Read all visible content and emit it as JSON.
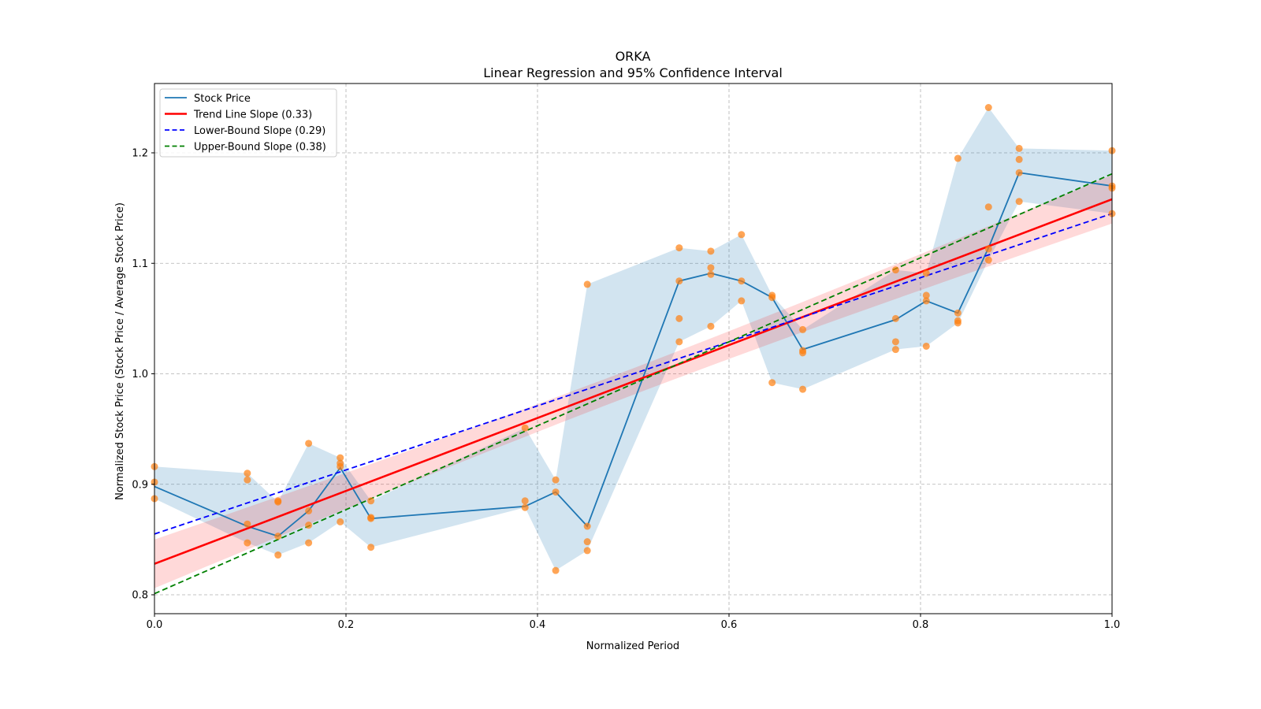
{
  "chart_data": {
    "type": "line",
    "title": "ORKA",
    "subtitle": "Linear Regression and 95% Confidence Interval",
    "xlabel": "Normalized Period",
    "ylabel": "Normalized Stock Price (Stock Price / Average Stock Price)",
    "xlim": [
      0.0,
      1.0
    ],
    "ylim": [
      0.78,
      1.26
    ],
    "grid": true,
    "legend_position": "top-left",
    "x_ticks": [
      "0.0",
      "0.2",
      "0.4",
      "0.6",
      "0.8",
      "1.0"
    ],
    "x_tick_values": [
      0.0,
      0.2,
      0.4,
      0.6,
      0.8,
      1.0
    ],
    "y_ticks": [
      "0.8",
      "0.9",
      "1.0",
      "1.1",
      "1.2"
    ],
    "y_tick_values": [
      0.8,
      0.9,
      1.0,
      1.1,
      1.2
    ],
    "legend": [
      {
        "label": "Stock Price",
        "color": "#1f77b4",
        "style": "solid"
      },
      {
        "label": "Trend Line Slope (0.33)",
        "color": "#ff0000",
        "style": "solid"
      },
      {
        "label": "Lower-Bound Slope (0.29)",
        "color": "#0000ff",
        "style": "dashed"
      },
      {
        "label": "Upper-Bound Slope (0.38)",
        "color": "#008000",
        "style": "dashed"
      }
    ],
    "stock_price_line": {
      "x": [
        0.0,
        0.097,
        0.129,
        0.161,
        0.194,
        0.226,
        0.387,
        0.419,
        0.452,
        0.548,
        0.581,
        0.613,
        0.645,
        0.677,
        0.774,
        0.806,
        0.839,
        0.871,
        0.903,
        1.0
      ],
      "y": [
        0.898,
        0.862,
        0.853,
        0.876,
        0.915,
        0.869,
        0.88,
        0.893,
        0.862,
        1.084,
        1.091,
        1.084,
        1.069,
        1.022,
        1.049,
        1.066,
        1.055,
        1.114,
        1.182,
        1.17
      ]
    },
    "range_band": {
      "x": [
        0.0,
        0.097,
        0.129,
        0.161,
        0.194,
        0.226,
        0.387,
        0.419,
        0.452,
        0.548,
        0.581,
        0.613,
        0.645,
        0.677,
        0.774,
        0.806,
        0.839,
        0.871,
        0.903,
        1.0
      ],
      "upper": [
        0.916,
        0.91,
        0.884,
        0.937,
        0.924,
        0.885,
        0.951,
        0.904,
        1.081,
        1.114,
        1.111,
        1.126,
        1.071,
        1.04,
        1.094,
        1.091,
        1.195,
        1.241,
        1.204,
        1.202
      ],
      "lower": [
        0.887,
        0.847,
        0.836,
        0.847,
        0.866,
        0.843,
        0.879,
        0.822,
        0.84,
        1.029,
        1.043,
        1.066,
        0.992,
        0.986,
        1.022,
        1.025,
        1.046,
        1.103,
        1.156,
        1.145
      ],
      "color": "#1f77b4"
    },
    "scatter_points": [
      [
        0.0,
        0.916
      ],
      [
        0.0,
        0.902
      ],
      [
        0.0,
        0.887
      ],
      [
        0.097,
        0.91
      ],
      [
        0.097,
        0.904
      ],
      [
        0.097,
        0.864
      ],
      [
        0.097,
        0.847
      ],
      [
        0.129,
        0.884
      ],
      [
        0.129,
        0.885
      ],
      [
        0.129,
        0.853
      ],
      [
        0.129,
        0.836
      ],
      [
        0.161,
        0.937
      ],
      [
        0.161,
        0.876
      ],
      [
        0.161,
        0.863
      ],
      [
        0.161,
        0.847
      ],
      [
        0.194,
        0.924
      ],
      [
        0.194,
        0.919
      ],
      [
        0.194,
        0.916
      ],
      [
        0.194,
        0.866
      ],
      [
        0.226,
        0.885
      ],
      [
        0.226,
        0.87
      ],
      [
        0.226,
        0.869
      ],
      [
        0.226,
        0.843
      ],
      [
        0.387,
        0.951
      ],
      [
        0.387,
        0.885
      ],
      [
        0.387,
        0.879
      ],
      [
        0.419,
        0.904
      ],
      [
        0.419,
        0.893
      ],
      [
        0.419,
        0.822
      ],
      [
        0.452,
        1.081
      ],
      [
        0.452,
        0.862
      ],
      [
        0.452,
        0.848
      ],
      [
        0.452,
        0.84
      ],
      [
        0.548,
        1.114
      ],
      [
        0.548,
        1.084
      ],
      [
        0.548,
        1.05
      ],
      [
        0.548,
        1.029
      ],
      [
        0.581,
        1.111
      ],
      [
        0.581,
        1.096
      ],
      [
        0.581,
        1.09
      ],
      [
        0.581,
        1.043
      ],
      [
        0.613,
        1.126
      ],
      [
        0.613,
        1.084
      ],
      [
        0.613,
        1.066
      ],
      [
        0.645,
        1.071
      ],
      [
        0.645,
        1.069
      ],
      [
        0.645,
        0.992
      ],
      [
        0.677,
        1.04
      ],
      [
        0.677,
        1.021
      ],
      [
        0.677,
        1.019
      ],
      [
        0.677,
        0.986
      ],
      [
        0.774,
        1.094
      ],
      [
        0.774,
        1.05
      ],
      [
        0.774,
        1.029
      ],
      [
        0.774,
        1.022
      ],
      [
        0.806,
        1.091
      ],
      [
        0.806,
        1.071
      ],
      [
        0.806,
        1.066
      ],
      [
        0.806,
        1.025
      ],
      [
        0.839,
        1.195
      ],
      [
        0.839,
        1.055
      ],
      [
        0.839,
        1.048
      ],
      [
        0.839,
        1.046
      ],
      [
        0.871,
        1.241
      ],
      [
        0.871,
        1.151
      ],
      [
        0.871,
        1.113
      ],
      [
        0.871,
        1.103
      ],
      [
        0.903,
        1.204
      ],
      [
        0.903,
        1.194
      ],
      [
        0.903,
        1.182
      ],
      [
        0.903,
        1.156
      ],
      [
        1.0,
        1.202
      ],
      [
        1.0,
        1.17
      ],
      [
        1.0,
        1.168
      ],
      [
        1.0,
        1.145
      ]
    ],
    "scatter_color": "#ff7f0e",
    "trend_line": {
      "slope": 0.33,
      "intercept": 0.828,
      "color": "#ff0000"
    },
    "trend_band": {
      "half_width_at_ends": 0.022,
      "half_width_at_center": 0.012,
      "color": "#ff0000"
    },
    "lower_bound_line": {
      "slope": 0.29,
      "intercept": 0.855,
      "color": "#0000ff"
    },
    "upper_bound_line": {
      "slope": 0.38,
      "intercept": 0.801,
      "color": "#008000"
    }
  }
}
